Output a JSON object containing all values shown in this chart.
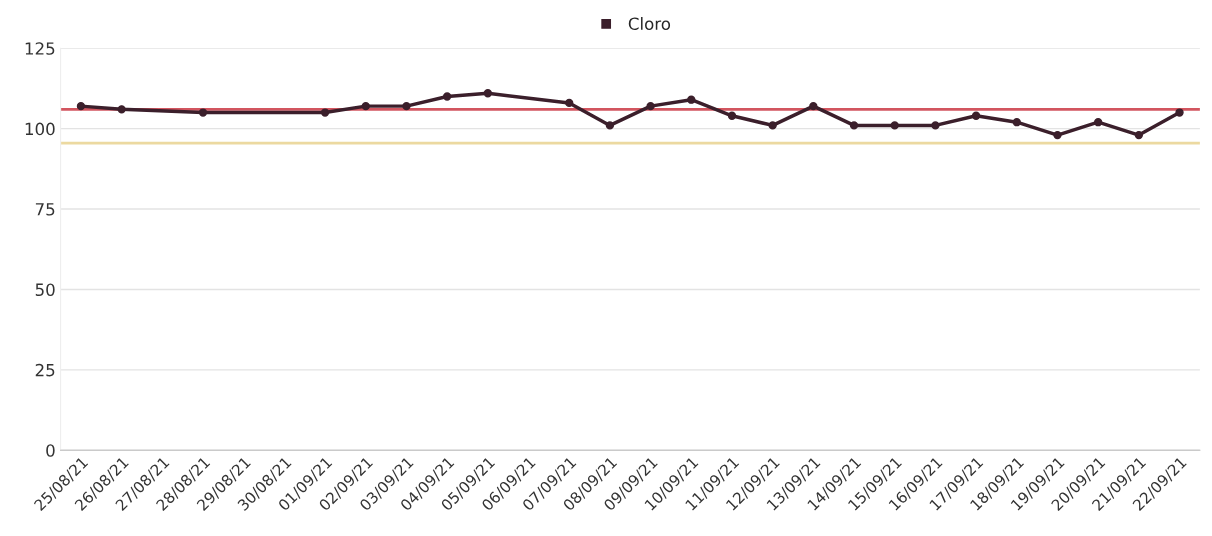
{
  "chart_data": {
    "type": "line",
    "categories": [
      "25/08/21",
      "26/08/21",
      "27/08/21",
      "28/08/21",
      "29/08/21",
      "30/08/21",
      "01/09/21",
      "02/09/21",
      "03/09/21",
      "04/09/21",
      "05/09/21",
      "06/09/21",
      "07/09/21",
      "08/09/21",
      "09/09/21",
      "10/09/21",
      "11/09/21",
      "12/09/21",
      "13/09/21",
      "14/09/21",
      "15/09/21",
      "16/09/21",
      "17/09/21",
      "18/09/21",
      "19/09/21",
      "20/09/21",
      "21/09/21",
      "22/09/21"
    ],
    "series": [
      {
        "name": "Cloro",
        "color": "#3b1f2b",
        "values": [
          107,
          106,
          null,
          105,
          null,
          null,
          105,
          107,
          107,
          110,
          111,
          null,
          108,
          101,
          107,
          109,
          104,
          101,
          107,
          101,
          101,
          101,
          104,
          102,
          98,
          102,
          98,
          105
        ]
      }
    ],
    "ylim": [
      0,
      125
    ],
    "yticks": [
      0,
      25,
      50,
      75,
      100,
      125
    ],
    "ref_lines": [
      {
        "axis": "y",
        "value": 106,
        "color": "#d2555f"
      },
      {
        "axis": "y",
        "value": 95.5,
        "color": "#ecd9a0"
      }
    ],
    "grid": "y",
    "legend": "top",
    "marker": "circle",
    "line_style": "solid"
  }
}
